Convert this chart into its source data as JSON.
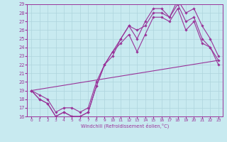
{
  "xlabel": "Windchill (Refroidissement éolien,°C)",
  "bg_color": "#c8eaf0",
  "line_color": "#993399",
  "grid_color": "#aed4dc",
  "xlim": [
    -0.5,
    23.5
  ],
  "ylim": [
    16,
    29
  ],
  "xticks": [
    0,
    1,
    2,
    3,
    4,
    5,
    6,
    7,
    8,
    9,
    10,
    11,
    12,
    13,
    14,
    15,
    16,
    17,
    18,
    19,
    20,
    21,
    22,
    23
  ],
  "yticks": [
    16,
    17,
    18,
    19,
    20,
    21,
    22,
    23,
    24,
    25,
    26,
    27,
    28,
    29
  ],
  "series": [
    {
      "x": [
        0,
        1,
        2,
        3,
        4,
        5,
        6,
        7,
        8,
        9,
        10,
        11,
        12,
        13,
        14,
        15,
        16,
        17,
        18,
        19,
        20,
        21,
        22,
        23
      ],
      "y": [
        19,
        18,
        17.5,
        16,
        16.5,
        16,
        16,
        16.5,
        19.5,
        22,
        23.5,
        25,
        26.5,
        26,
        26.5,
        28,
        28,
        27.5,
        29,
        27,
        27.5,
        25,
        24,
        22.5
      ]
    },
    {
      "x": [
        0,
        1,
        2,
        3,
        4,
        5,
        6,
        7,
        8,
        9,
        10,
        11,
        12,
        13,
        14,
        15,
        16,
        17,
        18,
        19,
        20,
        21,
        22,
        23
      ],
      "y": [
        19,
        18,
        17.5,
        16,
        16.5,
        16,
        16,
        16.5,
        19.5,
        22,
        23.5,
        24.5,
        25.5,
        23.5,
        25.5,
        27.5,
        27.5,
        27,
        28.5,
        26,
        27,
        24.5,
        24,
        22
      ]
    },
    {
      "x": [
        0,
        1,
        2,
        3,
        4,
        5,
        6,
        7,
        8,
        9,
        10,
        11,
        12,
        13,
        14,
        15,
        16,
        17,
        18,
        19,
        20,
        21,
        22,
        23
      ],
      "y": [
        19,
        18.5,
        18,
        16.5,
        17,
        17,
        16.5,
        17,
        20,
        22,
        23,
        25,
        26.5,
        25,
        27,
        28.5,
        28.5,
        27.5,
        29.5,
        28,
        28.5,
        26.5,
        25,
        23
      ]
    }
  ],
  "line1_straight": {
    "x": [
      0,
      23
    ],
    "y": [
      19,
      22.5
    ]
  }
}
